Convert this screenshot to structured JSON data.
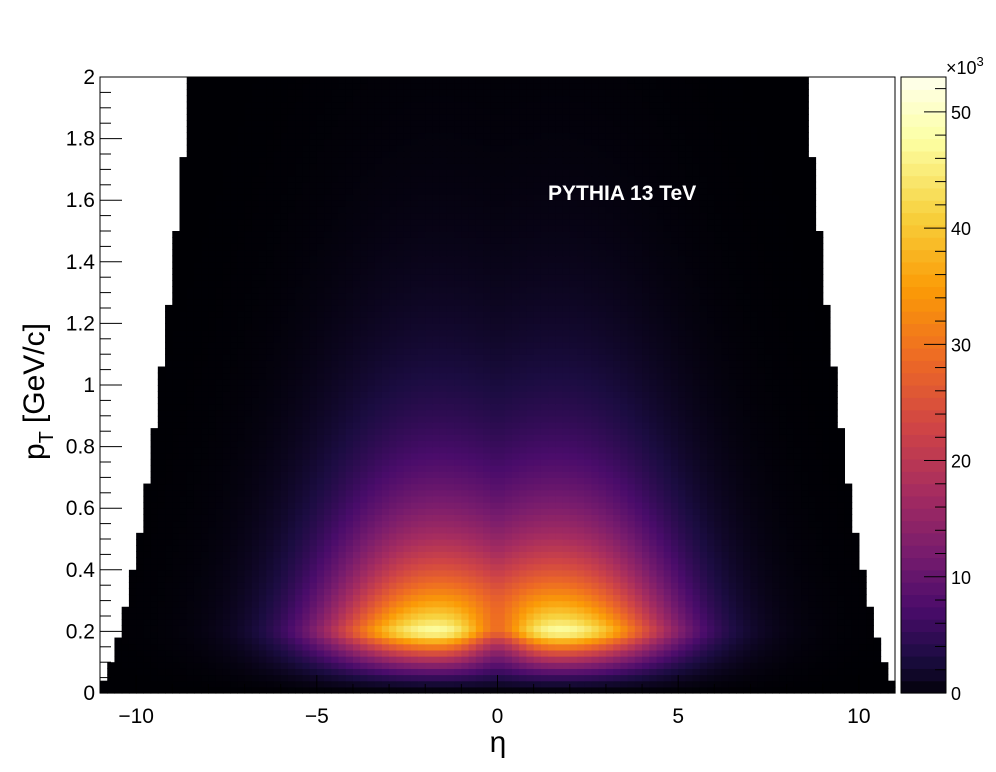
{
  "chart_data": {
    "type": "heatmap",
    "title": "",
    "annotation": "PYTHIA 13 TeV",
    "xlabel": "η",
    "ylabel_main": "p",
    "ylabel_sub": "T",
    "ylabel_unit": "[GeV/c]",
    "xlim": [
      -11,
      11
    ],
    "ylim": [
      0,
      2
    ],
    "x_ticks": [
      -10,
      -5,
      0,
      5,
      10
    ],
    "x_tick_labels": [
      "−10",
      "−5",
      "0",
      "5",
      "10"
    ],
    "y_ticks": [
      0,
      0.2,
      0.4,
      0.6,
      0.8,
      1,
      1.2,
      1.4,
      1.6,
      1.8,
      2
    ],
    "y_tick_labels": [
      "0",
      "0.2",
      "0.4",
      "0.6",
      "0.8",
      "1",
      "1.2",
      "1.4",
      "1.6",
      "1.8",
      "2"
    ],
    "z_range": [
      0,
      53000
    ],
    "z_ticks": [
      0,
      10,
      20,
      30,
      40,
      50
    ],
    "z_tick_labels": [
      "0",
      "10",
      "20",
      "30",
      "40",
      "50"
    ],
    "z_multiplier_base": "×10",
    "z_multiplier_exp": "3",
    "colormap": [
      "#000004",
      "#1b0c41",
      "#4a0c6b",
      "#781c6d",
      "#a52c60",
      "#cf4446",
      "#ed6925",
      "#fb9b06",
      "#f7d13d",
      "#fcffa4",
      "#ffffff"
    ],
    "peaks": [
      {
        "eta": -2.2,
        "pt": 0.2,
        "z": 53000
      },
      {
        "eta": 2.2,
        "pt": 0.2,
        "z": 53000
      }
    ],
    "empty_region_color": "#ffffff"
  }
}
